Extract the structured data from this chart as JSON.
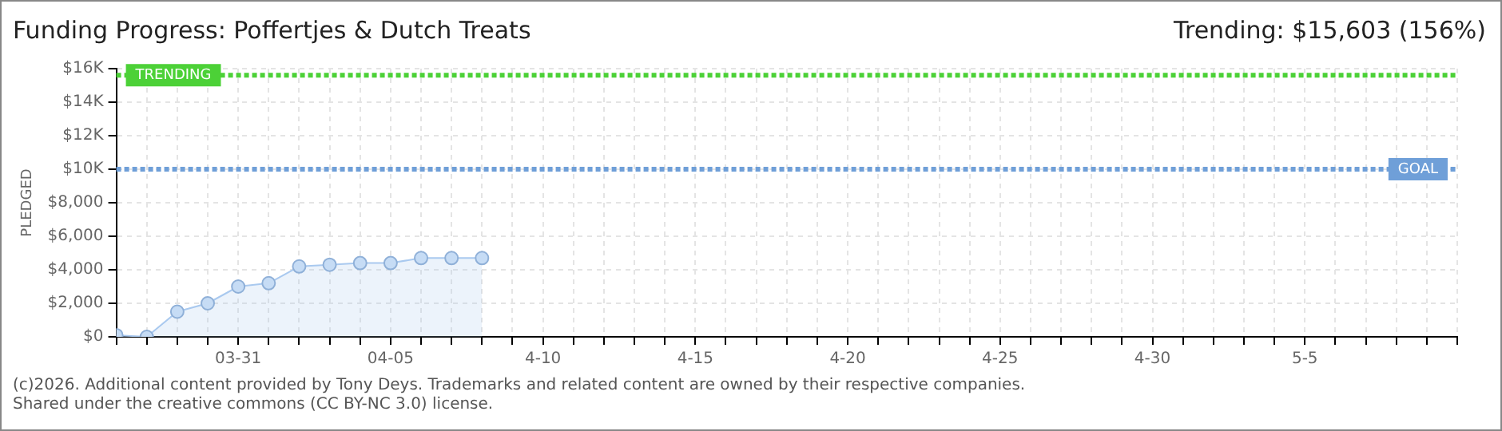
{
  "chart_data": {
    "type": "area",
    "title": "Funding Progress: Poffertjes & Dutch Treats",
    "subtitle": "Trending:  $15,603 (156%)",
    "ylabel": "PLEDGED",
    "x": [
      "--03-27",
      "--03-28",
      "--03-29",
      "--03-30",
      "--03-31",
      "--04-01",
      "--04-02",
      "--04-03",
      "--04-04",
      "--04-05",
      "--04-06",
      "--04-07",
      "--04-08"
    ],
    "series": [
      {
        "color": "#a9c9ef",
        "values": [
          100,
          0,
          1500,
          2000,
          3000,
          3200,
          4200,
          4300,
          4400,
          4400,
          4700,
          4700,
          4700
        ]
      }
    ],
    "xlim": [
      "--03-27",
      "--05-10"
    ],
    "xticks": [
      {
        "value": "--03-27",
        "label": null
      },
      {
        "value": "--03-28",
        "label": null
      },
      {
        "value": "--03-29",
        "label": null
      },
      {
        "value": "--03-30",
        "label": null
      },
      {
        "value": "--03-31",
        "label": "03-31"
      },
      {
        "value": "--04-01",
        "label": null
      },
      {
        "value": "--04-02",
        "label": null
      },
      {
        "value": "--04-03",
        "label": null
      },
      {
        "value": "--04-04",
        "label": null
      },
      {
        "value": "--04-05",
        "label": "04-05"
      },
      {
        "value": "--04-06",
        "label": null
      },
      {
        "value": "--04-07",
        "label": null
      },
      {
        "value": "--04-08",
        "label": null
      },
      {
        "value": "--04-09",
        "label": null
      },
      {
        "value": "--04-10",
        "label": "4-10"
      },
      {
        "value": "--04-11",
        "label": null
      },
      {
        "value": "--04-12",
        "label": null
      },
      {
        "value": "--04-13",
        "label": null
      },
      {
        "value": "--04-14",
        "label": null
      },
      {
        "value": "--04-15",
        "label": "4-15"
      },
      {
        "value": "--04-16",
        "label": null
      },
      {
        "value": "--04-17",
        "label": null
      },
      {
        "value": "--04-18",
        "label": null
      },
      {
        "value": "--04-19",
        "label": null
      },
      {
        "value": "--04-20",
        "label": "4-20"
      },
      {
        "value": "--04-21",
        "label": null
      },
      {
        "value": "--04-22",
        "label": null
      },
      {
        "value": "--04-23",
        "label": null
      },
      {
        "value": "--04-24",
        "label": null
      },
      {
        "value": "--04-25",
        "label": "4-25"
      },
      {
        "value": "--04-26",
        "label": null
      },
      {
        "value": "--04-27",
        "label": null
      },
      {
        "value": "--04-28",
        "label": null
      },
      {
        "value": "--04-29",
        "label": null
      },
      {
        "value": "--04-30",
        "label": "4-30"
      },
      {
        "value": "--05-01",
        "label": null
      },
      {
        "value": "--05-02",
        "label": null
      },
      {
        "value": "--05-03",
        "label": null
      },
      {
        "value": "--05-04",
        "label": null
      },
      {
        "value": "--05-05",
        "label": "5-5"
      },
      {
        "value": "--05-06",
        "label": null
      },
      {
        "value": "--05-07",
        "label": null
      },
      {
        "value": "--05-08",
        "label": null
      },
      {
        "value": "--05-09",
        "label": null
      },
      {
        "value": "--05-10",
        "label": null
      }
    ],
    "ylim": [
      0,
      16000
    ],
    "yticks": [
      {
        "value": 0,
        "label": "$0"
      },
      {
        "value": 2000,
        "label": "$2,000"
      },
      {
        "value": 4000,
        "label": "$4,000"
      },
      {
        "value": 6000,
        "label": "$6,000"
      },
      {
        "value": 8000,
        "label": "$8,000"
      },
      {
        "value": 10000,
        "label": "$10K"
      },
      {
        "value": 12000,
        "label": "$12K"
      },
      {
        "value": 14000,
        "label": "$14K"
      },
      {
        "value": 16000,
        "label": "$16K"
      }
    ],
    "ref_lines": [
      {
        "axis": "y",
        "value": 10000,
        "label": "GOAL",
        "color": "#6f9fd8",
        "line_style": "dotted"
      },
      {
        "axis": "y",
        "value": 15603,
        "label": "TRENDING",
        "color": "#4cd137",
        "line_style": "dotted"
      }
    ],
    "grid": true,
    "marker": "circle",
    "line_style": "solid",
    "legend": false,
    "annotations": [
      "(c)2026. Additional content provided by Tony Deys. Trademarks and related content are owned by their respective companies.",
      "Shared under the creative commons (CC BY-NC 3.0) license."
    ]
  }
}
